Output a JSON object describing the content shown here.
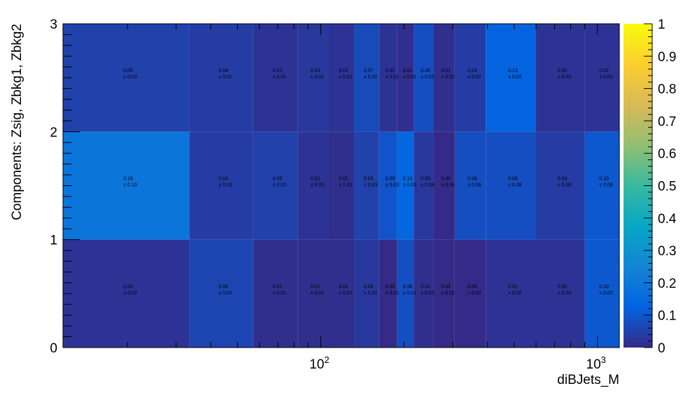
{
  "chart_data": {
    "type": "heatmap",
    "title": "",
    "xlabel": "diBJets_M",
    "ylabel": "Components: Zsig, Zbkg1, Zbkg2",
    "x_scale": "log",
    "x_range": [
      11.7,
      1200
    ],
    "x_major_tick_labels": [
      {
        "value": 100,
        "base": "10",
        "exp": "2"
      },
      {
        "value": 1000,
        "base": "10",
        "exp": "3"
      }
    ],
    "y_range": [
      0,
      3
    ],
    "y_tick_labels": [
      "0",
      "1",
      "2",
      "3"
    ],
    "colorbar": {
      "range": [
        0,
        1
      ],
      "tick_labels": [
        "0",
        "0.1",
        "0.2",
        "0.3",
        "0.4",
        "0.5",
        "0.6",
        "0.7",
        "0.8",
        "0.9",
        "1"
      ],
      "palette": [
        "#352a87",
        "#0363e1",
        "#1485d4",
        "#06a7c6",
        "#38b99e",
        "#92bf73",
        "#d9ba56",
        "#fcce2e",
        "#f9fb0e"
      ]
    },
    "x_bin_edges": [
      11.7,
      33.5,
      57.0,
      82.5,
      107.0,
      132.0,
      162.5,
      189.0,
      217.0,
      255.0,
      305.0,
      395.0,
      600.0,
      900.0,
      1200.0
    ],
    "rows": [
      {
        "component": "Zbkg2",
        "y_bin": [
          2,
          3
        ],
        "values": [
          0.05,
          0.04,
          0.02,
          0.03,
          0.02,
          0.07,
          0.02,
          0.01,
          0.08,
          0.01,
          0.04,
          0.13,
          0.02,
          0.02
        ],
        "errors": [
          0.03,
          0.01,
          0.01,
          0.01,
          0.01,
          0.01,
          0.01,
          0.01,
          0.02,
          0.02,
          0.02,
          0.02,
          0.02,
          0.02
        ]
      },
      {
        "component": "Zbkg1",
        "y_bin": [
          1,
          2
        ],
        "values": [
          0.19,
          0.04,
          0.05,
          0.02,
          0.01,
          0.05,
          0.09,
          0.14,
          0.03,
          0.0,
          0.08,
          0.08,
          0.04,
          0.1
        ],
        "errors": [
          0.1,
          0.03,
          0.03,
          0.03,
          0.03,
          0.03,
          0.03,
          0.03,
          0.08,
          0.08,
          0.08,
          0.08,
          0.08,
          0.08
        ]
      },
      {
        "component": "Zsig",
        "y_bin": [
          0,
          1
        ],
        "values": [
          0.02,
          0.06,
          0.01,
          0.01,
          0.01,
          0.03,
          0.0,
          0.08,
          0.01,
          0.0,
          0.0,
          0.02,
          0.02,
          0.1
        ],
        "errors": [
          0.03,
          0.01,
          0.01,
          0.01,
          0.01,
          0.01,
          0.01,
          0.01,
          0.02,
          0.02,
          0.02,
          0.02,
          0.02,
          0.02
        ]
      }
    ],
    "grid": false,
    "legend": "none"
  }
}
